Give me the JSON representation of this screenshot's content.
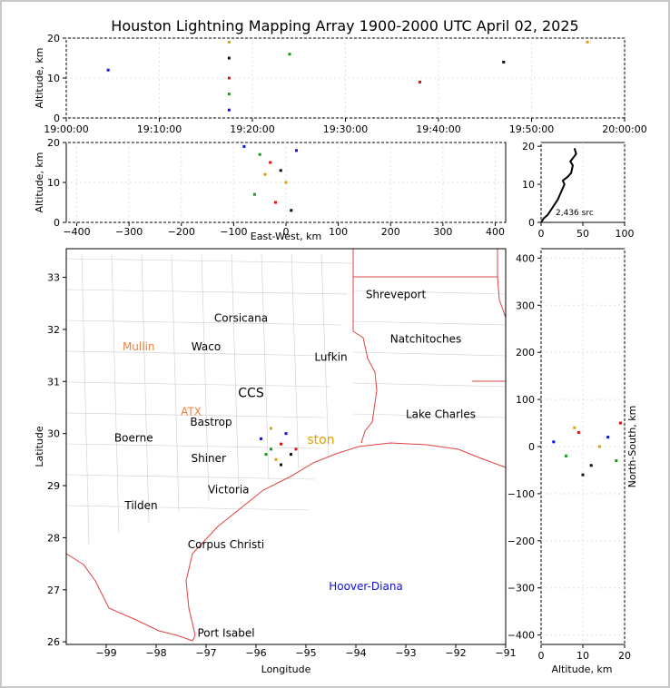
{
  "title": "Houston Lightning Mapping Array 1900-2000 UTC April 02, 2025",
  "colors": {
    "coast": "#e04040",
    "counties": "#c8c8c8",
    "city": "#000000",
    "orange_label": "#f08040",
    "blue_label": "#1010e0",
    "gold_label": "#e0a000"
  },
  "panels": {
    "time_altitude": {
      "ylabel": "Altitude, km",
      "ylim": [
        0,
        20
      ],
      "yticks": [
        "0",
        "10",
        "20"
      ],
      "xlim": [
        "19:00:00",
        "20:00:00"
      ],
      "xticks": [
        "19:00:00",
        "19:10:00",
        "19:20:00",
        "19:30:00",
        "19:40:00",
        "19:50:00",
        "20:00:00"
      ]
    },
    "eastwest_altitude": {
      "xlabel": "East-West, km",
      "ylabel": "Altitude, km",
      "xlim": [
        -420,
        420
      ],
      "ylim": [
        0,
        20
      ],
      "xticks": [
        "−400",
        "−300",
        "−200",
        "−100",
        "0",
        "100",
        "200",
        "300",
        "400"
      ],
      "yticks": [
        "0",
        "10",
        "20"
      ]
    },
    "histogram": {
      "xlim": [
        0,
        100
      ],
      "ylim": [
        0,
        21
      ],
      "xticks": [
        "0",
        "50",
        "100"
      ],
      "yticks": [
        "0",
        "10",
        "20"
      ],
      "label": "2,436 src"
    },
    "map": {
      "xlabel": "Longitude",
      "ylabel": "Latitude",
      "xlim": [
        -99.8,
        -91.0
      ],
      "ylim": [
        25.95,
        33.55
      ],
      "xticks": [
        "−99",
        "−98",
        "−97",
        "−96",
        "−95",
        "−94",
        "−93",
        "−92",
        "−91"
      ],
      "yticks": [
        "26",
        "27",
        "28",
        "29",
        "30",
        "31",
        "32",
        "33"
      ],
      "cities": [
        {
          "name": "Shreveport",
          "lon": -93.2,
          "lat": 32.6,
          "color": "#000000"
        },
        {
          "name": "Corsicana",
          "lon": -96.3,
          "lat": 32.15,
          "color": "#000000"
        },
        {
          "name": "Natchitoches",
          "lon": -92.6,
          "lat": 31.75,
          "color": "#000000"
        },
        {
          "name": "Mullin",
          "lon": -98.35,
          "lat": 31.6,
          "color": "#f08040"
        },
        {
          "name": "Waco",
          "lon": -97.0,
          "lat": 31.6,
          "color": "#000000"
        },
        {
          "name": "Lufkin",
          "lon": -94.5,
          "lat": 31.4,
          "color": "#000000"
        },
        {
          "name": "ATX",
          "lon": -97.3,
          "lat": 30.35,
          "color": "#f08040"
        },
        {
          "name": "Bastrop",
          "lon": -96.9,
          "lat": 30.15,
          "color": "#000000"
        },
        {
          "name": "Lake Charles",
          "lon": -92.3,
          "lat": 30.3,
          "color": "#000000"
        },
        {
          "name": "Boerne",
          "lon": -98.45,
          "lat": 29.85,
          "color": "#000000"
        },
        {
          "name": "Shiner",
          "lon": -96.95,
          "lat": 29.45,
          "color": "#000000"
        },
        {
          "name": "Victoria",
          "lon": -96.55,
          "lat": 28.85,
          "color": "#000000"
        },
        {
          "name": "Tilden",
          "lon": -98.3,
          "lat": 28.55,
          "color": "#000000"
        },
        {
          "name": "Corpus Christi",
          "lon": -96.6,
          "lat": 27.8,
          "color": "#000000"
        },
        {
          "name": "Hoover-Diana",
          "lon": -93.8,
          "lat": 27.0,
          "color": "#1010e0"
        },
        {
          "name": "Port Isabel",
          "lon": -96.6,
          "lat": 26.1,
          "color": "#000000"
        }
      ],
      "partial_labels": [
        {
          "name": "CCS",
          "lon": -96.1,
          "lat": 30.7,
          "color": "#000000"
        },
        {
          "name": "ston",
          "lon": -94.7,
          "lat": 29.8,
          "color": "#e0a000"
        }
      ]
    },
    "altitude_ns": {
      "xlabel": "Altitude, km",
      "ylabel": "North-South, km",
      "xlim": [
        0,
        20
      ],
      "ylim": [
        -420,
        420
      ],
      "xticks": [
        "0",
        "10",
        "20"
      ],
      "yticks": [
        "−400",
        "−300",
        "−200",
        "−100",
        "0",
        "100",
        "200",
        "300",
        "400"
      ]
    }
  },
  "chart_data": [
    {
      "type": "scatter",
      "title": "Houston Lightning Mapping Array 1900-2000 UTC April 02, 2025",
      "panel": "time vs altitude",
      "xlabel": "",
      "ylabel": "Altitude, km",
      "xlim": [
        "19:00:00",
        "20:00:00"
      ],
      "ylim": [
        0,
        20
      ],
      "note_series": "dense column of sources near 19:17; sparse sources elsewhere near 20 km",
      "x": [
        "19:17:30",
        "19:17:30",
        "19:17:30",
        "19:17:30",
        "19:17:30",
        "19:04:30",
        "19:24:00",
        "19:38:00",
        "19:47:00",
        "19:56:00"
      ],
      "y": [
        2,
        6,
        10,
        15,
        19,
        12,
        16,
        9,
        14,
        19
      ]
    },
    {
      "type": "scatter",
      "panel": "east-west vs altitude",
      "xlabel": "East-West, km",
      "ylabel": "Altitude, km",
      "xlim": [
        -420,
        420
      ],
      "ylim": [
        0,
        20
      ],
      "x": [
        -80,
        -50,
        -30,
        -10,
        0,
        20,
        -60,
        -20,
        10,
        -40
      ],
      "y": [
        19,
        17,
        15,
        13,
        10,
        18,
        7,
        5,
        3,
        12
      ]
    },
    {
      "type": "line",
      "panel": "altitude histogram",
      "label": "2,436 src",
      "xlim": [
        0,
        100
      ],
      "ylim": [
        0,
        21
      ],
      "x": [
        0,
        3,
        8,
        14,
        20,
        24,
        28,
        26,
        32,
        36,
        38,
        35,
        42,
        40
      ],
      "y": [
        0,
        1,
        2,
        4,
        6,
        8,
        10,
        11,
        12,
        13,
        15,
        16,
        18,
        19.5
      ]
    },
    {
      "type": "scatter",
      "panel": "map",
      "xlabel": "Longitude",
      "ylabel": "Latitude",
      "xlim": [
        -99.8,
        -91.0
      ],
      "ylim": [
        25.95,
        33.55
      ],
      "x": [
        -95.9,
        -95.7,
        -95.5,
        -95.3,
        -95.6,
        -95.4,
        -95.8,
        -95.2,
        -95.5,
        -95.7
      ],
      "y": [
        29.9,
        29.7,
        29.8,
        29.6,
        29.5,
        30.0,
        29.6,
        29.7,
        29.4,
        30.1
      ]
    },
    {
      "type": "scatter",
      "panel": "altitude vs north-south",
      "xlabel": "Altitude, km",
      "ylabel": "North-South, km",
      "xlim": [
        0,
        20
      ],
      "ylim": [
        -420,
        420
      ],
      "x": [
        3,
        6,
        9,
        12,
        14,
        16,
        18,
        19,
        10,
        8
      ],
      "y": [
        10,
        -20,
        30,
        -40,
        0,
        20,
        -30,
        50,
        -60,
        40
      ]
    }
  ]
}
